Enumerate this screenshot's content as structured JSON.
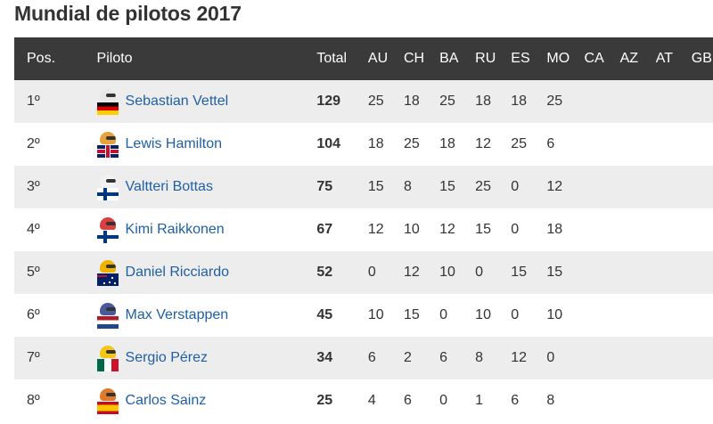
{
  "page": {
    "title": "Mundial de pilotos 2017"
  },
  "table": {
    "headers": {
      "pos": "Pos.",
      "pilot": "Piloto",
      "total": "Total",
      "races": [
        "AU",
        "CH",
        "BA",
        "RU",
        "ES",
        "MO",
        "CA",
        "AZ",
        "AT",
        "GB"
      ]
    },
    "rows": [
      {
        "pos": "1º",
        "pilot": "Sebastian Vettel",
        "total": "129",
        "flag": "de",
        "helmet": "#e8e8e8",
        "results": [
          "25",
          "18",
          "25",
          "18",
          "18",
          "25",
          "",
          "",
          "",
          ""
        ]
      },
      {
        "pos": "2º",
        "pilot": "Lewis Hamilton",
        "total": "104",
        "flag": "gb",
        "helmet": "#e6a23c",
        "results": [
          "18",
          "25",
          "18",
          "12",
          "25",
          "6",
          "",
          "",
          "",
          ""
        ]
      },
      {
        "pos": "3º",
        "pilot": "Valtteri Bottas",
        "total": "75",
        "flag": "fi",
        "helmet": "#f2f2f2",
        "results": [
          "15",
          "8",
          "15",
          "25",
          "0",
          "12",
          "",
          "",
          "",
          ""
        ]
      },
      {
        "pos": "4º",
        "pilot": "Kimi Raikkonen",
        "total": "67",
        "flag": "fi",
        "helmet": "#d94040",
        "results": [
          "12",
          "10",
          "12",
          "15",
          "0",
          "18",
          "",
          "",
          "",
          ""
        ]
      },
      {
        "pos": "5º",
        "pilot": "Daniel Ricciardo",
        "total": "52",
        "flag": "au",
        "helmet": "#f0b400",
        "results": [
          "0",
          "12",
          "10",
          "0",
          "15",
          "15",
          "",
          "",
          "",
          ""
        ]
      },
      {
        "pos": "6º",
        "pilot": "Max Verstappen",
        "total": "45",
        "flag": "nl",
        "helmet": "#4a5a9a",
        "results": [
          "10",
          "15",
          "0",
          "10",
          "0",
          "10",
          "",
          "",
          "",
          ""
        ]
      },
      {
        "pos": "7º",
        "pilot": "Sergio Pérez",
        "total": "34",
        "flag": "mx",
        "helmet": "#f5c518",
        "results": [
          "6",
          "2",
          "6",
          "8",
          "12",
          "0",
          "",
          "",
          "",
          ""
        ]
      },
      {
        "pos": "8º",
        "pilot": "Carlos Sainz",
        "total": "25",
        "flag": "es",
        "helmet": "#e07a2a",
        "results": [
          "4",
          "6",
          "0",
          "1",
          "6",
          "8",
          "",
          "",
          "",
          ""
        ]
      }
    ]
  }
}
